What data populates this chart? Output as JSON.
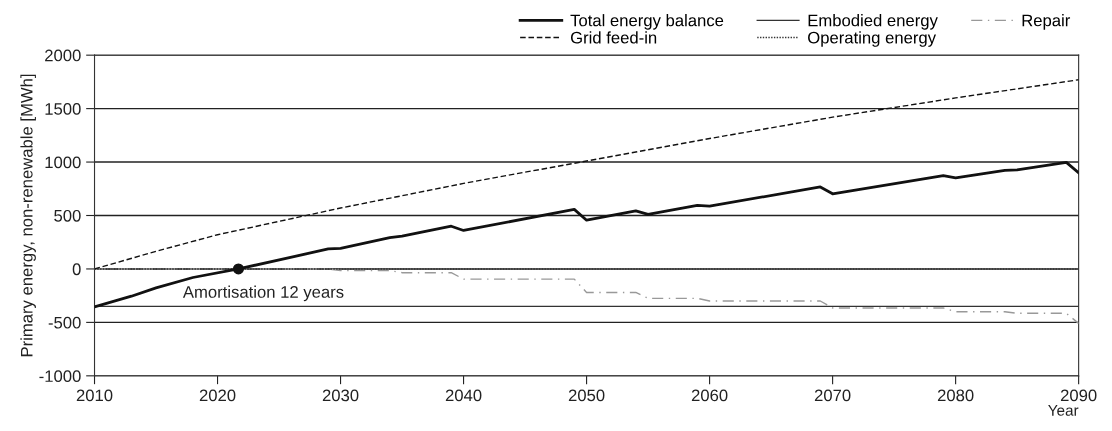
{
  "chart_data": {
    "type": "line",
    "xlabel": "Year",
    "ylabel": "Primary energy, non-renewable [MWh]",
    "xlim": [
      2010,
      2090
    ],
    "xticks": [
      2010,
      2020,
      2030,
      2040,
      2050,
      2060,
      2070,
      2080,
      2090
    ],
    "ylim": [
      -1000,
      2000
    ],
    "yticks": [
      -1000,
      -500,
      0,
      500,
      1000,
      1500,
      2000
    ],
    "grid": "y",
    "legend": "top right",
    "marker": "none",
    "annotations": [
      {
        "text": "Amortisation 12 years",
        "x": 2021.7,
        "y": 0
      }
    ],
    "series": [
      {
        "name": "Total energy balance",
        "color": "#111111",
        "line_style": "solid",
        "x": [
          2010,
          2013,
          2015,
          2018,
          2021.7,
          2029,
          2030,
          2034,
          2035,
          2039,
          2040,
          2049,
          2050,
          2054,
          2055,
          2059,
          2060,
          2069,
          2070,
          2079,
          2080,
          2084,
          2085,
          2089,
          2090
        ],
        "values": [
          -354,
          -255,
          -177,
          -80,
          0,
          187,
          193,
          293,
          307,
          400,
          360,
          557,
          456,
          544,
          510,
          595,
          588,
          767,
          703,
          872,
          851,
          922,
          926,
          997,
          899
        ]
      },
      {
        "name": "Grid feed-in",
        "color": "#111111",
        "line_style": "dashed",
        "x": [
          2010,
          2015,
          2020,
          2030,
          2040,
          2050,
          2060,
          2070,
          2080,
          2090
        ],
        "values": [
          0,
          165,
          320,
          570,
          800,
          1010,
          1220,
          1420,
          1600,
          1770
        ]
      },
      {
        "name": "Embodied energy",
        "color": "#333333",
        "line_style": "solid",
        "x": [
          2010,
          2090
        ],
        "values": [
          -350,
          -350
        ]
      },
      {
        "name": "Operating energy",
        "color": "#333333",
        "line_style": "dotted",
        "x": [
          2010,
          2090
        ],
        "values": [
          0,
          0
        ]
      },
      {
        "name": "Repair",
        "color": "#999999",
        "line_style": "dashdot",
        "x": [
          2010,
          2029,
          2030,
          2034,
          2035,
          2039,
          2040,
          2049,
          2050,
          2054,
          2055,
          2059,
          2060,
          2069,
          2070,
          2079,
          2080,
          2084,
          2085,
          2089,
          2090
        ],
        "values": [
          0,
          0,
          -15,
          -15,
          -35,
          -35,
          -95,
          -95,
          -220,
          -220,
          -275,
          -275,
          -300,
          -300,
          -365,
          -365,
          -400,
          -400,
          -415,
          -415,
          -510
        ]
      }
    ]
  }
}
